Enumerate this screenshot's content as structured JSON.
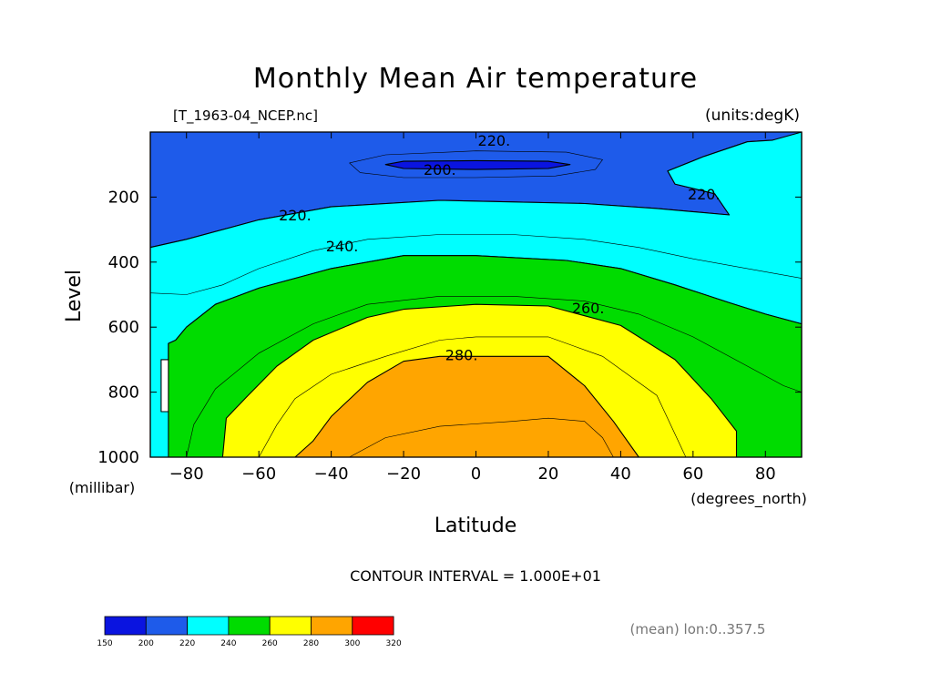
{
  "chart_data": {
    "type": "contour",
    "title": "Monthly Mean Air temperature",
    "subtitle_left": "[T_1963-04_NCEP.nc]",
    "units": "(units:degK)",
    "xlabel": "Latitude",
    "x_unit": "(degrees_north)",
    "ylabel": "Level",
    "y_unit": "(millibar)",
    "xlim": [
      -90,
      90
    ],
    "ylim": [
      1000,
      0
    ],
    "x_ticks": [
      -80,
      -60,
      -40,
      -20,
      0,
      20,
      40,
      60,
      80
    ],
    "y_ticks": [
      200,
      400,
      600,
      800,
      1000
    ],
    "contour_interval": "CONTOUR INTERVAL = 1.000E+01",
    "footnote": "(mean) lon:0..357.5",
    "contour_labels": [
      {
        "text": "220.",
        "x": 5,
        "y": 25
      },
      {
        "text": "200.",
        "x": -10,
        "y": 115
      },
      {
        "text": "220.",
        "x": 63,
        "y": 190
      },
      {
        "text": "220.",
        "x": -50,
        "y": 255
      },
      {
        "text": "240.",
        "x": -37,
        "y": 350
      },
      {
        "text": "260.",
        "x": 31,
        "y": 540
      },
      {
        "text": "280.",
        "x": -4,
        "y": 685
      }
    ],
    "levels": [
      {
        "value": 200,
        "color": "#1e5bea",
        "boundary": [
          [
            -90,
            0
          ],
          [
            90,
            0
          ],
          [
            90,
            25
          ],
          [
            82,
            25
          ],
          [
            75,
            30
          ],
          [
            63,
            75
          ],
          [
            53,
            120
          ],
          [
            55,
            160
          ],
          [
            66,
            190
          ],
          [
            70,
            255
          ],
          [
            50,
            235
          ],
          [
            30,
            220
          ],
          [
            -10,
            210
          ],
          [
            -40,
            230
          ],
          [
            -60,
            270
          ],
          [
            -80,
            330
          ],
          [
            -90,
            355
          ]
        ]
      },
      {
        "value": 220,
        "color": "#00ffff",
        "boundary": [
          [
            90,
            0
          ],
          [
            90,
            590
          ],
          [
            80,
            560
          ],
          [
            70,
            525
          ],
          [
            55,
            470
          ],
          [
            40,
            420
          ],
          [
            25,
            395
          ],
          [
            0,
            380
          ],
          [
            -20,
            380
          ],
          [
            -40,
            420
          ],
          [
            -60,
            480
          ],
          [
            -72,
            530
          ],
          [
            -80,
            600
          ],
          [
            -83,
            640
          ],
          [
            -85,
            650
          ],
          [
            -85,
            700
          ],
          [
            -87,
            700
          ],
          [
            -87,
            860
          ],
          [
            -84,
            860
          ],
          [
            -84,
            1000
          ],
          [
            -90,
            1000
          ],
          [
            -90,
            355
          ],
          [
            -80,
            330
          ],
          [
            -60,
            270
          ],
          [
            -40,
            230
          ],
          [
            -10,
            210
          ],
          [
            30,
            220
          ],
          [
            50,
            235
          ],
          [
            70,
            255
          ],
          [
            66,
            190
          ],
          [
            55,
            160
          ],
          [
            53,
            120
          ],
          [
            63,
            75
          ],
          [
            75,
            30
          ],
          [
            82,
            25
          ]
        ]
      },
      {
        "value": 240,
        "color": "#00dc00",
        "boundary": [
          [
            -85,
            1000
          ],
          [
            -85,
            650
          ],
          [
            -83,
            640
          ],
          [
            -80,
            600
          ],
          [
            -72,
            530
          ],
          [
            -60,
            480
          ],
          [
            -40,
            420
          ],
          [
            -20,
            380
          ],
          [
            0,
            380
          ],
          [
            25,
            395
          ],
          [
            40,
            420
          ],
          [
            55,
            470
          ],
          [
            70,
            525
          ],
          [
            80,
            560
          ],
          [
            90,
            590
          ],
          [
            90,
            1000
          ]
        ]
      },
      {
        "value": 260,
        "color": "#ffff00",
        "boundary": [
          [
            -70,
            1000
          ],
          [
            -69,
            880
          ],
          [
            -63,
            810
          ],
          [
            -55,
            720
          ],
          [
            -45,
            640
          ],
          [
            -30,
            570
          ],
          [
            -20,
            545
          ],
          [
            0,
            530
          ],
          [
            20,
            535
          ],
          [
            30,
            565
          ],
          [
            40,
            595
          ],
          [
            55,
            700
          ],
          [
            65,
            820
          ],
          [
            72,
            920
          ],
          [
            72,
            1000
          ]
        ]
      },
      {
        "value": 280,
        "color": "#ffa500",
        "boundary": [
          [
            -50,
            1000
          ],
          [
            -45,
            950
          ],
          [
            -40,
            875
          ],
          [
            -30,
            770
          ],
          [
            -20,
            705
          ],
          [
            -10,
            690
          ],
          [
            0,
            690
          ],
          [
            20,
            690
          ],
          [
            30,
            780
          ],
          [
            38,
            890
          ],
          [
            45,
            1000
          ]
        ]
      },
      {
        "value": 190,
        "color": "#0a14e0",
        "boundary": [
          [
            -25,
            100
          ],
          [
            -20,
            90
          ],
          [
            0,
            88
          ],
          [
            20,
            90
          ],
          [
            26,
            100
          ],
          [
            20,
            112
          ],
          [
            0,
            115
          ],
          [
            -20,
            112
          ]
        ]
      }
    ],
    "thin_contours": [
      {
        "value": 210,
        "points": [
          [
            -35,
            95
          ],
          [
            -25,
            70
          ],
          [
            0,
            58
          ],
          [
            25,
            62
          ],
          [
            35,
            85
          ],
          [
            33,
            115
          ],
          [
            22,
            135
          ],
          [
            0,
            140
          ],
          [
            -20,
            140
          ],
          [
            -32,
            125
          ],
          [
            -35,
            95
          ]
        ]
      },
      {
        "value": 230,
        "points": [
          [
            -90,
            495
          ],
          [
            -80,
            500
          ],
          [
            -70,
            470
          ],
          [
            -60,
            420
          ],
          [
            -45,
            365
          ],
          [
            -30,
            330
          ],
          [
            -10,
            315
          ],
          [
            10,
            315
          ],
          [
            30,
            330
          ],
          [
            45,
            355
          ],
          [
            60,
            390
          ],
          [
            75,
            420
          ],
          [
            90,
            450
          ]
        ]
      },
      {
        "value": 250,
        "points": [
          [
            -80,
            1000
          ],
          [
            -78,
            900
          ],
          [
            -72,
            790
          ],
          [
            -60,
            680
          ],
          [
            -45,
            590
          ],
          [
            -30,
            530
          ],
          [
            -10,
            505
          ],
          [
            10,
            505
          ],
          [
            30,
            520
          ],
          [
            45,
            560
          ],
          [
            60,
            630
          ],
          [
            75,
            720
          ],
          [
            85,
            780
          ],
          [
            90,
            800
          ]
        ]
      },
      {
        "value": 270,
        "points": [
          [
            -60,
            1000
          ],
          [
            -55,
            900
          ],
          [
            -50,
            820
          ],
          [
            -40,
            745
          ],
          [
            -25,
            690
          ],
          [
            -10,
            640
          ],
          [
            0,
            630
          ],
          [
            20,
            630
          ],
          [
            35,
            690
          ],
          [
            50,
            810
          ],
          [
            58,
            1000
          ]
        ]
      },
      {
        "value": 290,
        "points": [
          [
            -35,
            1000
          ],
          [
            -25,
            940
          ],
          [
            -10,
            905
          ],
          [
            10,
            890
          ],
          [
            20,
            880
          ],
          [
            30,
            890
          ],
          [
            35,
            940
          ],
          [
            38,
            1000
          ]
        ]
      }
    ],
    "colorbar": {
      "ticks": [
        "150",
        "200",
        "220",
        "240",
        "260",
        "280",
        "300",
        "320"
      ],
      "colors": [
        "#0a14e0",
        "#1e5bea",
        "#00ffff",
        "#00dc00",
        "#ffff00",
        "#ffa500",
        "#ff0000"
      ]
    }
  }
}
